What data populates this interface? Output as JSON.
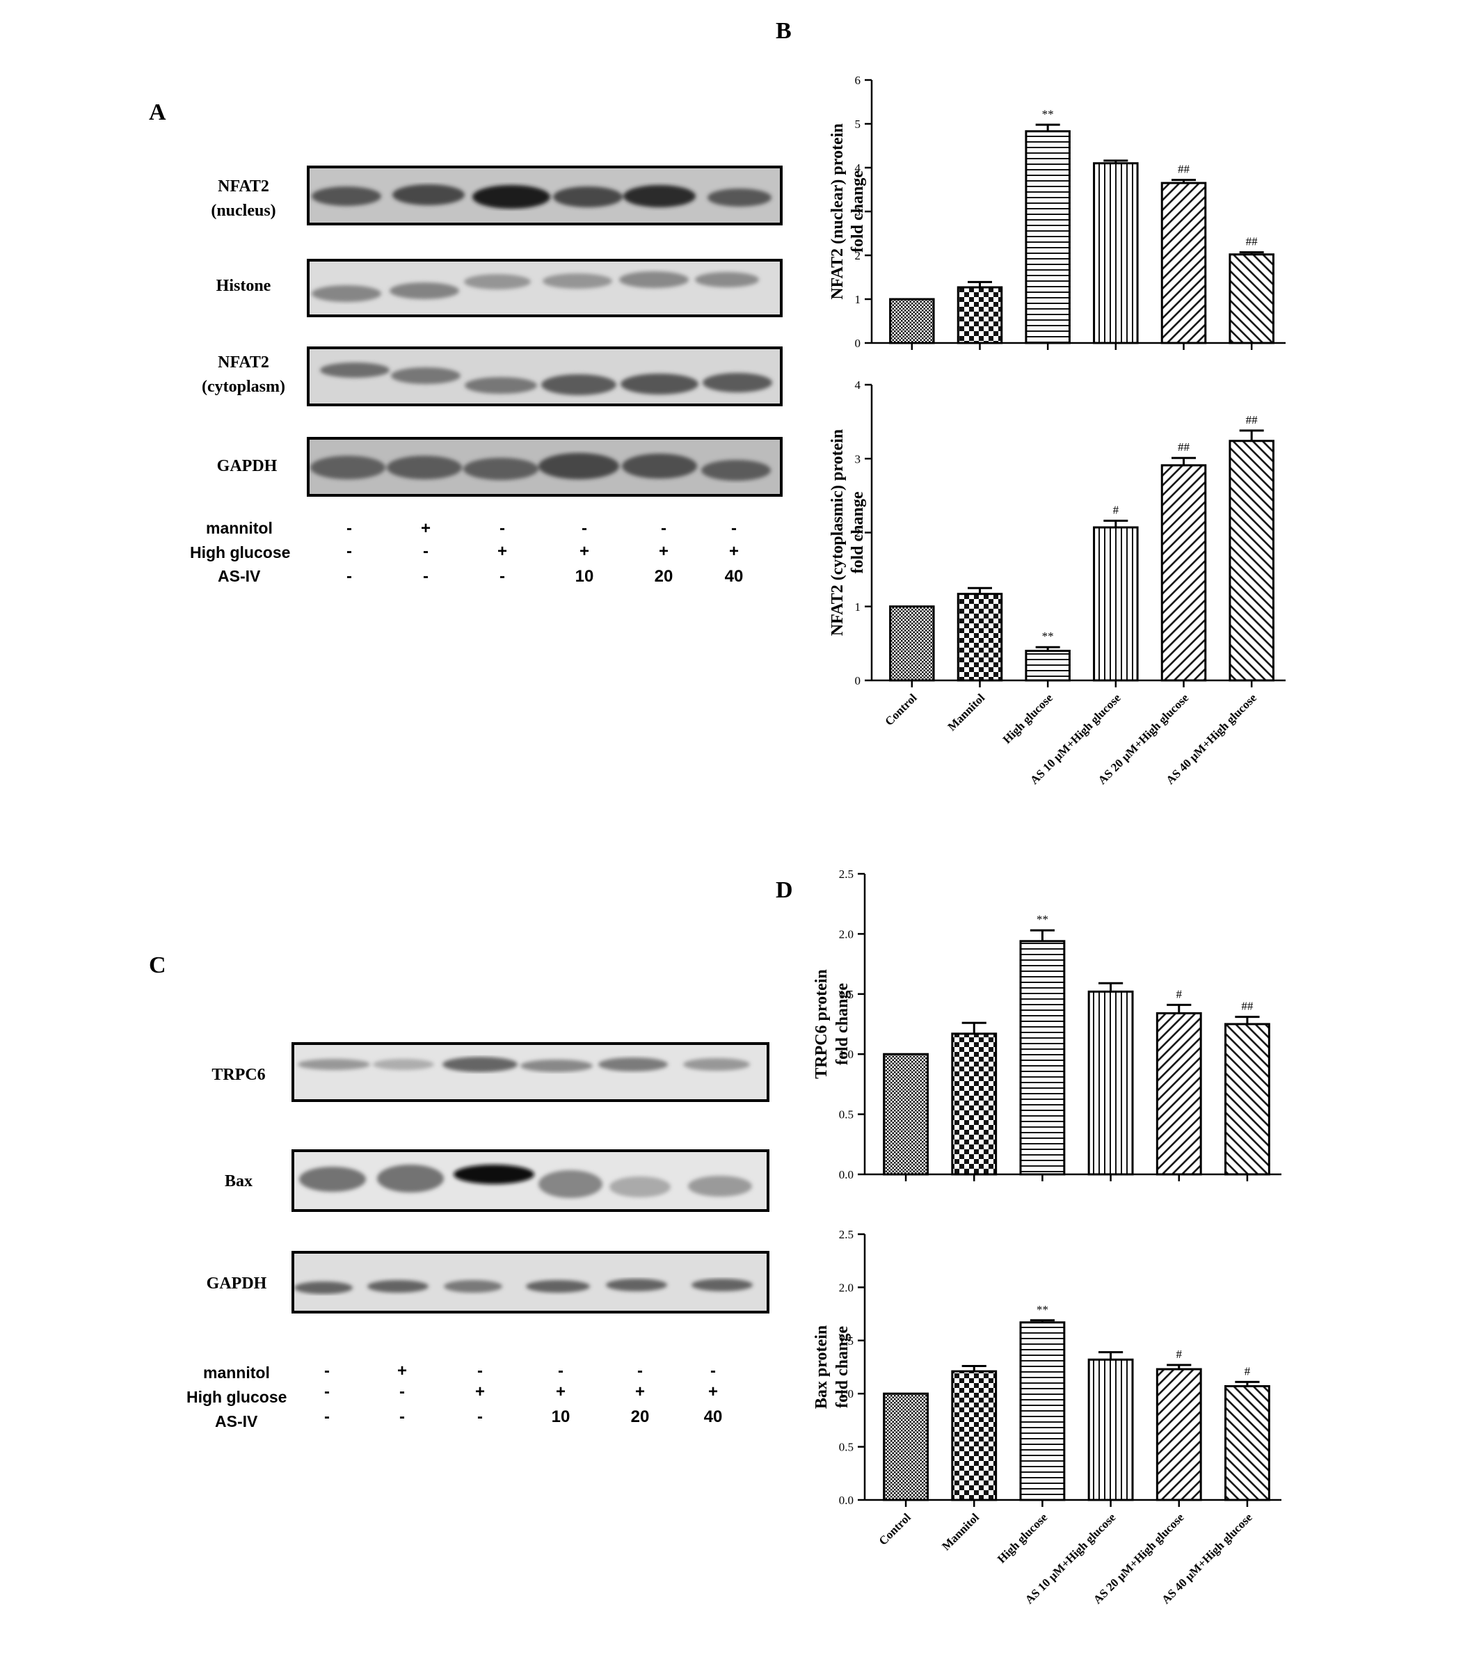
{
  "panels": {
    "A": "A",
    "B": "B",
    "C": "C",
    "D": "D"
  },
  "blots_A": {
    "labels": [
      [
        "NFAT2",
        "(nucleus)"
      ],
      [
        "Histone"
      ],
      [
        "NFAT2",
        "(cytoplasm)"
      ],
      [
        "GAPDH"
      ]
    ]
  },
  "blots_C": {
    "labels": [
      [
        "TRPC6"
      ],
      [
        "Bax"
      ],
      [
        "GAPDH"
      ]
    ]
  },
  "treatments_A": {
    "rows": [
      {
        "label": "mannitol",
        "values": [
          "-",
          "+",
          "-",
          "-",
          "-",
          "-"
        ]
      },
      {
        "label": "High glucose",
        "values": [
          "-",
          "-",
          "+",
          "+",
          "+",
          "+"
        ]
      },
      {
        "label": "AS-IV",
        "values": [
          "-",
          "-",
          "-",
          "10",
          "20",
          "40"
        ]
      }
    ]
  },
  "treatments_C": {
    "rows": [
      {
        "label": "mannitol",
        "values": [
          "-",
          "+",
          "-",
          "-",
          "-",
          "-"
        ]
      },
      {
        "label": "High glucose",
        "values": [
          "-",
          "-",
          "+",
          "+",
          "+",
          "+"
        ]
      },
      {
        "label": "AS-IV",
        "values": [
          "-",
          "-",
          "-",
          "10",
          "20",
          "40"
        ]
      }
    ]
  },
  "chart_data": [
    {
      "type": "bar",
      "panel": "B",
      "categories": [
        "Control",
        "Mannitol",
        "High glucose",
        "AS 10 μM+High glucose",
        "AS 20 μM+High glucose",
        "AS 40 μM+High glucose"
      ],
      "values": [
        1.0,
        1.27,
        4.83,
        4.1,
        3.65,
        2.02
      ],
      "errors": [
        0.0,
        0.12,
        0.15,
        0.06,
        0.07,
        0.05
      ],
      "annotations": [
        "",
        "",
        "**",
        "",
        "##",
        "##"
      ],
      "ylabel": [
        "NFAT2 (nuclear) protein",
        "fold change"
      ],
      "ylim": [
        0,
        6
      ],
      "yticks": [
        "0",
        "1",
        "2",
        "3",
        "4",
        "5",
        "6"
      ],
      "show_categories": false
    },
    {
      "type": "bar",
      "panel": "B",
      "categories": [
        "Control",
        "Mannitol",
        "High glucose",
        "AS 10 μM+High glucose",
        "AS 20 μM+High glucose",
        "AS 40 μM+High glucose"
      ],
      "values": [
        1.0,
        1.17,
        0.4,
        2.07,
        2.91,
        3.24
      ],
      "errors": [
        0.0,
        0.08,
        0.05,
        0.09,
        0.1,
        0.14
      ],
      "annotations": [
        "",
        "",
        "**",
        "#",
        "##",
        "##"
      ],
      "ylabel": [
        "NFAT2 (cytoplasmic) protein",
        "fold change"
      ],
      "ylim": [
        0,
        4
      ],
      "yticks": [
        "0",
        "1",
        "2",
        "3",
        "4"
      ],
      "show_categories": true
    },
    {
      "type": "bar",
      "panel": "D",
      "categories": [
        "Control",
        "Mannitol",
        "High glucose",
        "AS 10 μM+High glucose",
        "AS 20 μM+High glucose",
        "AS 40 μM+High glucose"
      ],
      "values": [
        1.0,
        1.17,
        1.94,
        1.52,
        1.34,
        1.25
      ],
      "errors": [
        0.0,
        0.09,
        0.09,
        0.07,
        0.07,
        0.06
      ],
      "annotations": [
        "",
        "",
        "**",
        "",
        "#",
        "##"
      ],
      "ylabel": [
        "TRPC6 protein",
        "fold change"
      ],
      "ylim": [
        0,
        2.5
      ],
      "yticks": [
        "0.0",
        "0.5",
        "1.0",
        "1.5",
        "2.0",
        "2.5"
      ],
      "show_categories": false
    },
    {
      "type": "bar",
      "panel": "D",
      "categories": [
        "Control",
        "Mannitol",
        "High glucose",
        "AS 10 μM+High glucose",
        "AS 20 μM+High glucose",
        "AS 40 μM+High glucose"
      ],
      "values": [
        1.0,
        1.21,
        1.67,
        1.32,
        1.23,
        1.07
      ],
      "errors": [
        0.0,
        0.05,
        0.02,
        0.07,
        0.04,
        0.04
      ],
      "annotations": [
        "",
        "",
        "**",
        "",
        "#",
        "#"
      ],
      "ylabel": [
        "Bax protein",
        "fold change"
      ],
      "ylim": [
        0,
        2.5
      ],
      "yticks": [
        "0.0",
        "0.5",
        "1.0",
        "1.5",
        "2.0",
        "2.5"
      ],
      "show_categories": true
    }
  ]
}
